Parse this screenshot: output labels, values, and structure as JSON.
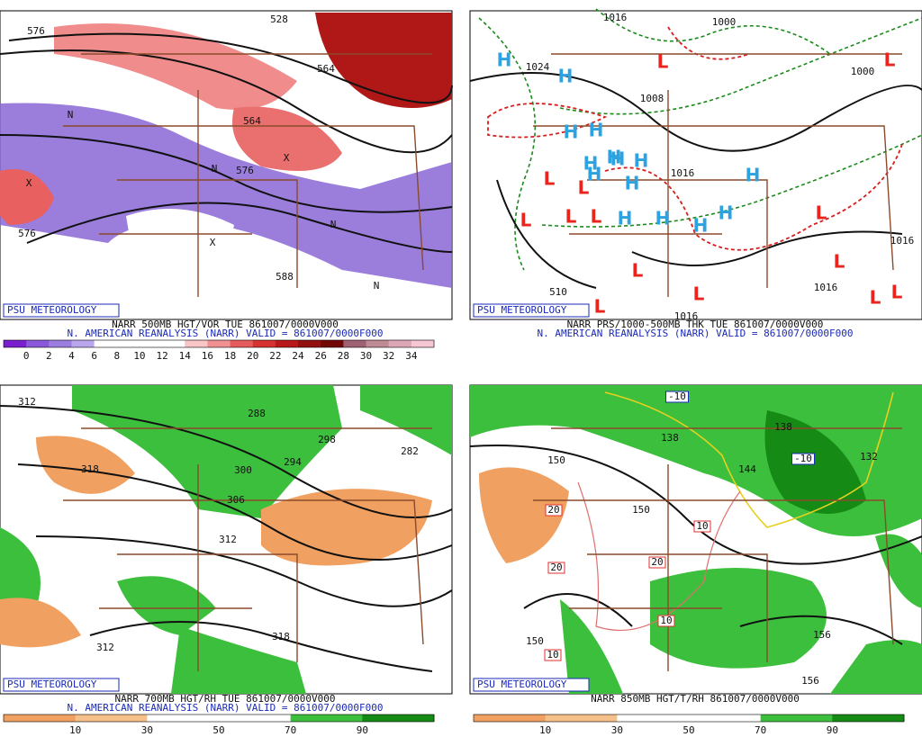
{
  "panels": [
    {
      "badge": "PSU METEOROLOGY",
      "title": "NARR 500MB HGT/VOR TUE 861007/0000V000",
      "subtitle": "N. AMERICAN REANALYSIS (NARR) VALID = 861007/0000F000",
      "colorbar": {
        "labels": [
          0,
          2,
          4,
          6,
          8,
          10,
          12,
          14,
          16,
          18,
          20,
          22,
          24,
          26,
          28,
          30,
          32,
          34
        ],
        "colors": [
          "#7a1fd0",
          "#8a58d8",
          "#9c7ee0",
          "#b9a6ec",
          "#ffffff",
          "#ffffff",
          "#ffffff",
          "#ffffff",
          "#f8c6c6",
          "#f09090",
          "#e65c5c",
          "#d63232",
          "#b81a1a",
          "#921010",
          "#700808",
          "#9e6272",
          "#be8a94",
          "#dda8b6",
          "#f6c6d2"
        ]
      },
      "labels": [
        "576",
        "528",
        "564",
        "564",
        "576",
        "576",
        "588",
        "N",
        "N",
        "N",
        "N",
        "X",
        "X",
        "X"
      ]
    },
    {
      "badge": "PSU METEOROLOGY",
      "title": "NARR PRS/1000-500MB THK TUE 861007/0000V000",
      "subtitle": "N. AMERICAN REANALYSIS (NARR) VALID = 861007/0000F000",
      "labels": [
        "1016",
        "1000",
        "1024",
        "1008",
        "1016",
        "1016",
        "1016",
        "1016",
        "1000",
        "510"
      ],
      "markers": [
        "H",
        "H",
        "H",
        "H",
        "H",
        "H",
        "H",
        "H",
        "H",
        "H",
        "H",
        "H",
        "H",
        "H",
        "H",
        "L",
        "L",
        "L",
        "L",
        "L",
        "L",
        "L",
        "L",
        "L",
        "L",
        "L",
        "L",
        "L",
        "L"
      ],
      "marker_colors": {
        "H": "#2ca2e0",
        "L": "#e8241c"
      }
    },
    {
      "badge": "PSU METEOROLOGY",
      "title": "NARR 700MB HGT/RH TUE 861007/0000V000",
      "subtitle": "N. AMERICAN REANALYSIS (NARR) VALID = 861007/0000F000",
      "colorbar": {
        "labels": [
          10,
          30,
          50,
          70,
          90
        ],
        "colors": [
          "#f0a060",
          "#f6c08a",
          "#ffffff",
          "#ffffff",
          "#3cbf3c",
          "#158a15"
        ]
      },
      "labels": [
        "312",
        "318",
        "288",
        "298",
        "294",
        "300",
        "306",
        "312",
        "312",
        "318",
        "282"
      ]
    },
    {
      "badge": "PSU METEOROLOGY",
      "title": "NARR 850MB HGT/T/RH 861007/0000V000",
      "subtitle": "",
      "colorbar": {
        "labels": [
          10,
          30,
          50,
          70,
          90
        ],
        "colors": [
          "#f0a060",
          "#f6c08a",
          "#ffffff",
          "#ffffff",
          "#3cbf3c",
          "#158a15"
        ]
      },
      "labels": [
        "-10",
        "-10",
        "138",
        "138",
        "144",
        "150",
        "150",
        "132",
        "20",
        "20",
        "20",
        "10",
        "10",
        "10",
        "150",
        "156",
        "156"
      ]
    }
  ]
}
